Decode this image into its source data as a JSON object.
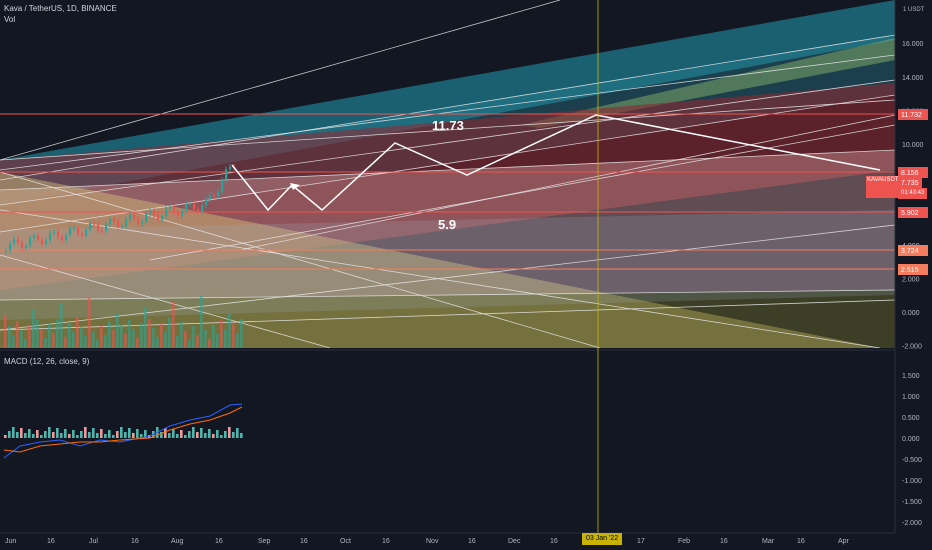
{
  "header": {
    "symbol_line": "Kava / TetherUS, 1D, BINANCE",
    "vol_label": "Vol",
    "macd_label": "MACD (12, 26, close, 9)"
  },
  "price_axis": {
    "currency": "USDT",
    "ticks": [
      "16.000",
      "14.000",
      "12.000",
      "10.000",
      "8.000",
      "6.000",
      "4.000",
      "2.000",
      "0.000",
      "-2.000"
    ]
  },
  "macd_axis": {
    "ticks": [
      "1.500",
      "1.000",
      "0.500",
      "0.000",
      "-0.500",
      "-1.000",
      "-1.500",
      "-2.000"
    ]
  },
  "time_axis": {
    "labels": [
      "Jun",
      "16",
      "Jul",
      "16",
      "Aug",
      "16",
      "Sep",
      "16",
      "Oct",
      "16",
      "Nov",
      "16",
      "Dec",
      "16",
      "17",
      "Feb",
      "16",
      "Mar",
      "16",
      "Apr",
      "16"
    ],
    "highlight": "03 Jan '22"
  },
  "price_levels": [
    {
      "value": "11.732",
      "color": "#ef5350"
    },
    {
      "value": "8.156",
      "color": "#ef5350"
    },
    {
      "value": "5.902",
      "color": "#ef5350"
    },
    {
      "value": "3.724",
      "color": "#f57c5c"
    },
    {
      "value": "2.515",
      "color": "#f57c5c"
    }
  ],
  "last_price": {
    "symbol": "KAVAUSDT",
    "price": "7.735",
    "countdown": "01:43:43"
  },
  "annotations": {
    "upper_target": "11.73",
    "lower_target": "5.9"
  },
  "colors": {
    "background": "#131722",
    "level": "#ef5350",
    "teal": "#26a69a",
    "macd": "#2962ff",
    "signal": "#ff6d00"
  },
  "chart_data": [
    {
      "type": "line",
      "title": "Kava / TetherUS, 1D, BINANCE",
      "y_unit": "USDT",
      "ylim": [
        -2,
        17
      ],
      "x": [
        "Jun",
        "16",
        "Jul",
        "16",
        "Aug",
        "16",
        "Sep",
        "16",
        "Oct",
        "16",
        "Nov",
        "16",
        "Dec",
        "16",
        "03 Jan '22",
        "17",
        "Feb",
        "16",
        "Mar",
        "16",
        "Apr",
        "16"
      ],
      "horizontal_levels": [
        11.732,
        8.156,
        5.902,
        3.724,
        2.515
      ],
      "last_price": 7.735,
      "projection_path_labels": [
        "11.73",
        "5.9"
      ]
    },
    {
      "type": "bar",
      "title": "MACD (12, 26, close, 9)",
      "ylim": [
        -2,
        1.5
      ]
    }
  ]
}
